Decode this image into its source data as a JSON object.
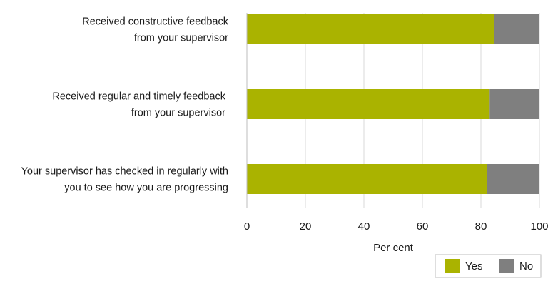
{
  "chart_data": {
    "type": "bar",
    "orientation": "horizontal",
    "stacked": true,
    "categories": [
      [
        "Received constructive feedback",
        "from your supervisor"
      ],
      [
        "Received regular and timely feedback",
        "from your supervisor"
      ],
      [
        "Your supervisor has checked in regularly with",
        "you to see how you are progressing"
      ]
    ],
    "series": [
      {
        "name": "Yes",
        "color": "#aab300",
        "values": [
          84.5,
          83,
          82
        ]
      },
      {
        "name": "No",
        "color": "#7f7f7f",
        "values": [
          15.5,
          17,
          18
        ]
      }
    ],
    "xlabel": "Per cent",
    "ylabel": "",
    "xlim": [
      0,
      100
    ],
    "xticks": [
      "0",
      "20",
      "40",
      "60",
      "80",
      "100"
    ],
    "grid": true,
    "legend_position": "bottom-right"
  }
}
